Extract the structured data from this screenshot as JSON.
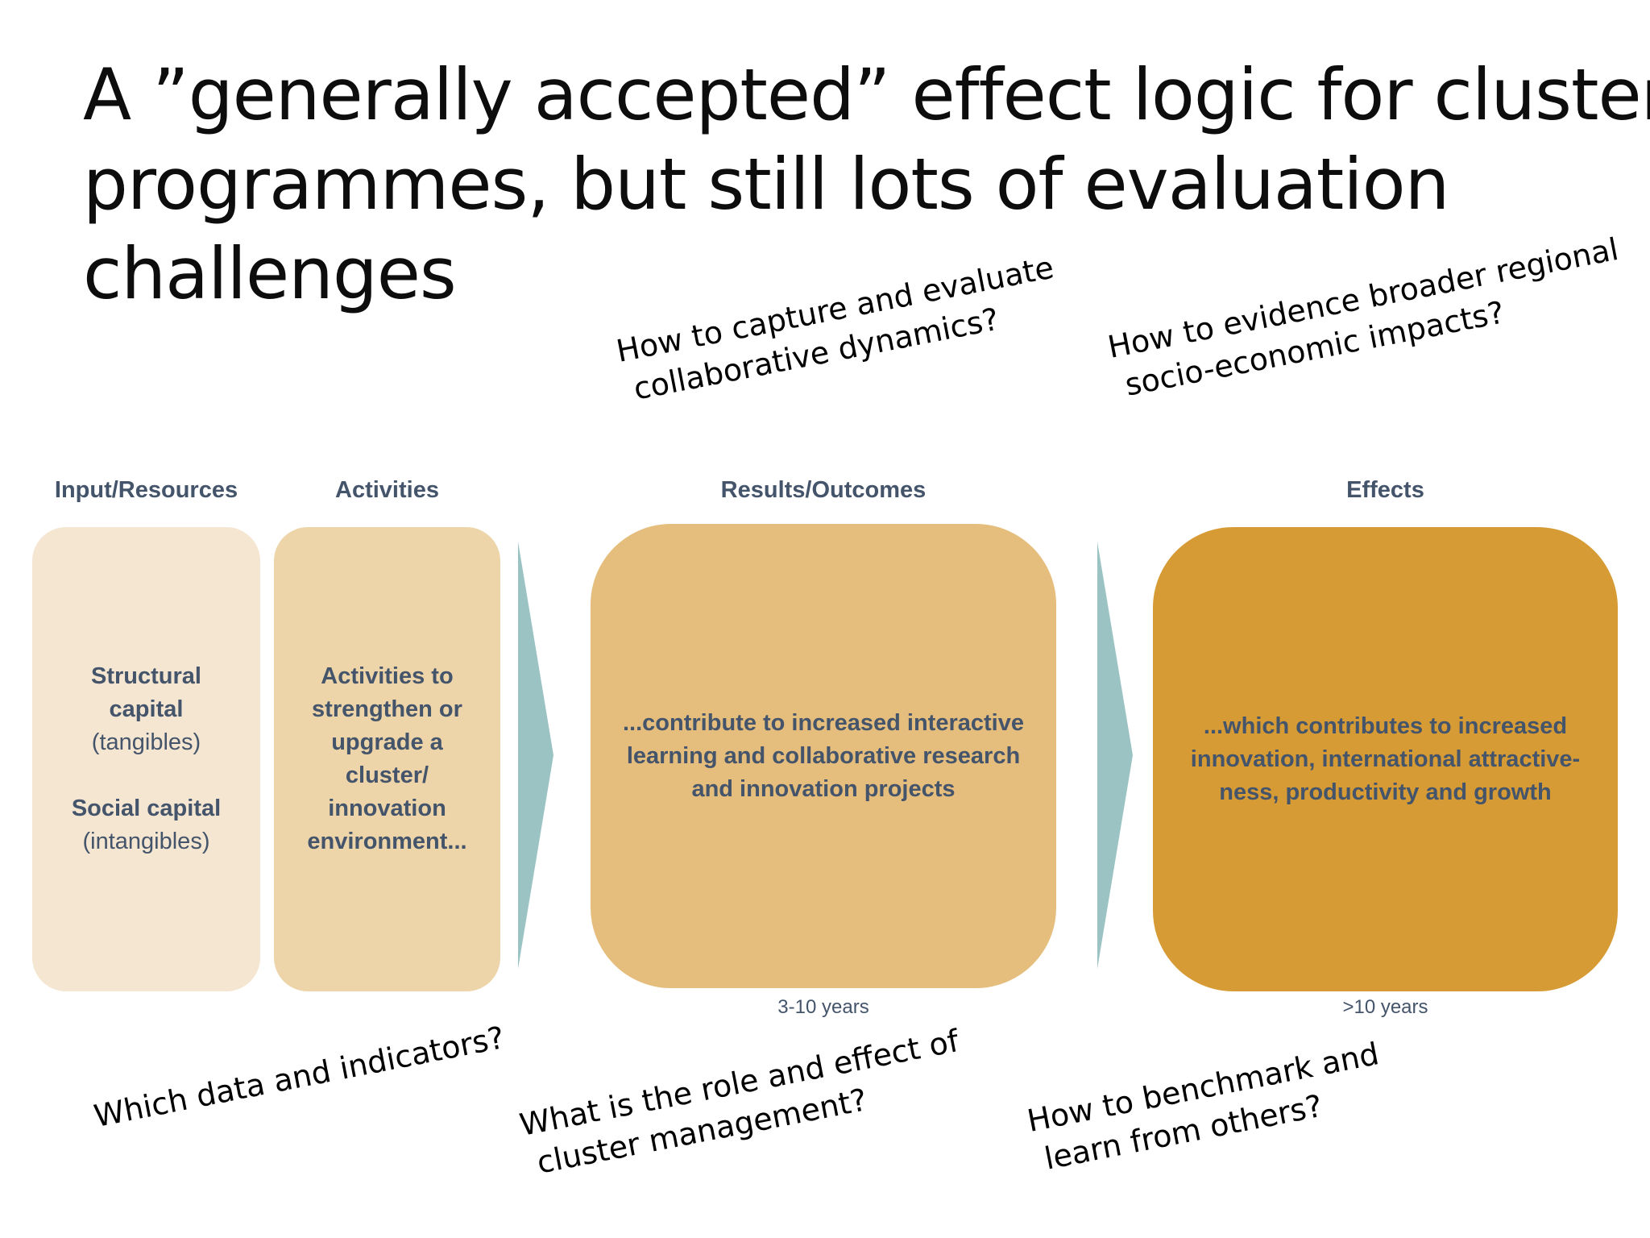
{
  "title": {
    "line1": "A ”generally accepted” effect logic for cluster",
    "line2": "programmes, but still lots of evaluation",
    "line3": "challenges"
  },
  "stages": {
    "input": {
      "label": "Input/Resources",
      "structural_title_1": "Structural",
      "structural_title_2": "capital",
      "structural_note": "(tangibles)",
      "social_title": "Social capital",
      "social_note": "(intangibles)"
    },
    "activities": {
      "label": "Activities",
      "line1": "Activities to",
      "line2": "strengthen or",
      "line3": "upgrade a",
      "line4": "cluster/",
      "line5": "innovation",
      "line6": "environment..."
    },
    "results": {
      "label": "Results/Outcomes",
      "line1": "...contribute to increased interactive",
      "line2": "learning and collaborative research",
      "line3": "and innovation projects",
      "years": "3-10 years"
    },
    "effects": {
      "label": "Effects",
      "line1": "...which contributes to increased",
      "line2": "innovation, international attractive-",
      "line3": "ness, productivity and growth",
      "years": ">10 years"
    }
  },
  "questions": {
    "collaborative": {
      "line1": "How to capture and evaluate",
      "line2": "collaborative dynamics?"
    },
    "regional": {
      "line1": "How to evidence broader regional",
      "line2": "socio-economic impacts?"
    },
    "data": {
      "line1": "Which data and indicators?"
    },
    "management": {
      "line1": "What is the role and effect of",
      "line2": "cluster management?"
    },
    "benchmark": {
      "line1": "How to benchmark and",
      "line2": "learn from others?"
    }
  },
  "colors": {
    "input_box": "#f5e6d2",
    "activities_box": "#edd5a9",
    "results_box": "#e5bd7c",
    "effects_box": "#d69b35",
    "arrow": "#9cc3c4",
    "label_text": "#44546a"
  },
  "icons": {
    "arrow_1": "chevron-right-arrow",
    "arrow_2": "chevron-right-arrow"
  }
}
